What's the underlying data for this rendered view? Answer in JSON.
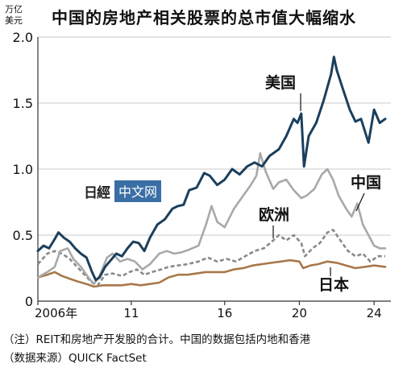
{
  "title": "中国的房地产相关股票的总市值大幅缩水",
  "unit_line1": "万亿",
  "unit_line2": "美元",
  "watermark": {
    "logo": "日經",
    "box": "中文网"
  },
  "notes": [
    "（注）REIT和房地产开发股的合计。中国的数据包括内地和香港",
    "（数据来源）QUICK FactSet"
  ],
  "chart_data": {
    "type": "line",
    "title": "中国的房地产相关股票的总市值大幅缩水",
    "ylabel": "万亿美元",
    "xlabel": "",
    "ylim": [
      0,
      2.0
    ],
    "xlim": [
      2006.0,
      2024.9
    ],
    "y_ticks": [
      0,
      0.5,
      1.0,
      1.5,
      2.0
    ],
    "y_tick_labels": [
      "0",
      "0.5",
      "1.0",
      "1.5",
      "2.0"
    ],
    "x_ticks": [
      2006,
      2011,
      2016,
      2020,
      2024
    ],
    "x_tick_labels": [
      "2006年",
      "11",
      "16",
      "20",
      "24"
    ],
    "grid": "horizontal",
    "series": [
      {
        "name": "美国",
        "color": "#1b3f5c",
        "style": "solid",
        "points": [
          [
            2006.0,
            0.38
          ],
          [
            2006.3,
            0.42
          ],
          [
            2006.6,
            0.4
          ],
          [
            2006.9,
            0.47
          ],
          [
            2007.1,
            0.52
          ],
          [
            2007.4,
            0.48
          ],
          [
            2007.7,
            0.45
          ],
          [
            2008.0,
            0.4
          ],
          [
            2008.3,
            0.36
          ],
          [
            2008.6,
            0.33
          ],
          [
            2008.9,
            0.22
          ],
          [
            2009.1,
            0.16
          ],
          [
            2009.3,
            0.18
          ],
          [
            2009.6,
            0.26
          ],
          [
            2009.9,
            0.31
          ],
          [
            2010.2,
            0.36
          ],
          [
            2010.5,
            0.34
          ],
          [
            2010.8,
            0.4
          ],
          [
            2011.1,
            0.45
          ],
          [
            2011.4,
            0.44
          ],
          [
            2011.7,
            0.38
          ],
          [
            2012.0,
            0.48
          ],
          [
            2012.4,
            0.58
          ],
          [
            2012.8,
            0.62
          ],
          [
            2013.2,
            0.7
          ],
          [
            2013.5,
            0.72
          ],
          [
            2013.8,
            0.73
          ],
          [
            2014.1,
            0.84
          ],
          [
            2014.5,
            0.86
          ],
          [
            2014.9,
            0.97
          ],
          [
            2015.2,
            0.95
          ],
          [
            2015.6,
            0.88
          ],
          [
            2016.0,
            0.92
          ],
          [
            2016.4,
            1.0
          ],
          [
            2016.8,
            0.96
          ],
          [
            2017.2,
            1.02
          ],
          [
            2017.6,
            1.05
          ],
          [
            2018.0,
            1.02
          ],
          [
            2018.4,
            1.1
          ],
          [
            2018.9,
            1.15
          ],
          [
            2019.3,
            1.25
          ],
          [
            2019.7,
            1.38
          ],
          [
            2019.9,
            1.35
          ],
          [
            2020.1,
            1.42
          ],
          [
            2020.25,
            1.02
          ],
          [
            2020.5,
            1.25
          ],
          [
            2020.9,
            1.35
          ],
          [
            2021.3,
            1.52
          ],
          [
            2021.7,
            1.72
          ],
          [
            2021.85,
            1.85
          ],
          [
            2022.0,
            1.75
          ],
          [
            2022.3,
            1.62
          ],
          [
            2022.7,
            1.45
          ],
          [
            2023.0,
            1.36
          ],
          [
            2023.3,
            1.38
          ],
          [
            2023.7,
            1.2
          ],
          [
            2024.0,
            1.45
          ],
          [
            2024.3,
            1.35
          ],
          [
            2024.6,
            1.38
          ]
        ]
      },
      {
        "name": "中国",
        "color": "#a9a9a9",
        "style": "solid",
        "points": [
          [
            2006.0,
            0.18
          ],
          [
            2006.5,
            0.22
          ],
          [
            2006.9,
            0.26
          ],
          [
            2007.2,
            0.38
          ],
          [
            2007.6,
            0.4
          ],
          [
            2007.9,
            0.32
          ],
          [
            2008.3,
            0.26
          ],
          [
            2008.7,
            0.18
          ],
          [
            2009.0,
            0.13
          ],
          [
            2009.3,
            0.19
          ],
          [
            2009.7,
            0.33
          ],
          [
            2010.0,
            0.36
          ],
          [
            2010.4,
            0.3
          ],
          [
            2010.8,
            0.32
          ],
          [
            2011.2,
            0.3
          ],
          [
            2011.6,
            0.24
          ],
          [
            2012.0,
            0.28
          ],
          [
            2012.5,
            0.36
          ],
          [
            2012.9,
            0.38
          ],
          [
            2013.3,
            0.36
          ],
          [
            2013.7,
            0.37
          ],
          [
            2014.1,
            0.39
          ],
          [
            2014.6,
            0.42
          ],
          [
            2015.0,
            0.58
          ],
          [
            2015.3,
            0.72
          ],
          [
            2015.6,
            0.6
          ],
          [
            2016.0,
            0.56
          ],
          [
            2016.5,
            0.7
          ],
          [
            2017.0,
            0.8
          ],
          [
            2017.4,
            0.88
          ],
          [
            2017.7,
            0.95
          ],
          [
            2017.9,
            1.12
          ],
          [
            2018.2,
            0.98
          ],
          [
            2018.6,
            0.85
          ],
          [
            2018.9,
            0.9
          ],
          [
            2019.3,
            0.92
          ],
          [
            2019.7,
            0.84
          ],
          [
            2020.1,
            0.78
          ],
          [
            2020.4,
            0.8
          ],
          [
            2020.8,
            0.85
          ],
          [
            2021.2,
            0.96
          ],
          [
            2021.5,
            1.0
          ],
          [
            2021.8,
            0.92
          ],
          [
            2022.1,
            0.8
          ],
          [
            2022.5,
            0.7
          ],
          [
            2022.8,
            0.64
          ],
          [
            2023.1,
            0.74
          ],
          [
            2023.4,
            0.58
          ],
          [
            2023.7,
            0.5
          ],
          [
            2024.0,
            0.42
          ],
          [
            2024.3,
            0.4
          ],
          [
            2024.6,
            0.4
          ]
        ]
      },
      {
        "name": "欧洲",
        "color": "#8a8a8a",
        "style": "dashed",
        "points": [
          [
            2006.0,
            0.28
          ],
          [
            2006.5,
            0.36
          ],
          [
            2006.9,
            0.38
          ],
          [
            2007.3,
            0.36
          ],
          [
            2007.7,
            0.32
          ],
          [
            2008.1,
            0.26
          ],
          [
            2008.5,
            0.2
          ],
          [
            2008.9,
            0.14
          ],
          [
            2009.2,
            0.12
          ],
          [
            2009.6,
            0.2
          ],
          [
            2010.0,
            0.21
          ],
          [
            2010.5,
            0.19
          ],
          [
            2010.9,
            0.22
          ],
          [
            2011.3,
            0.24
          ],
          [
            2011.7,
            0.2
          ],
          [
            2012.1,
            0.22
          ],
          [
            2012.6,
            0.24
          ],
          [
            2013.0,
            0.26
          ],
          [
            2013.5,
            0.27
          ],
          [
            2014.0,
            0.28
          ],
          [
            2014.6,
            0.3
          ],
          [
            2015.1,
            0.33
          ],
          [
            2015.6,
            0.3
          ],
          [
            2016.1,
            0.32
          ],
          [
            2016.6,
            0.3
          ],
          [
            2017.1,
            0.34
          ],
          [
            2017.6,
            0.38
          ],
          [
            2018.1,
            0.4
          ],
          [
            2018.6,
            0.46
          ],
          [
            2018.9,
            0.5
          ],
          [
            2019.3,
            0.46
          ],
          [
            2019.7,
            0.5
          ],
          [
            2020.1,
            0.44
          ],
          [
            2020.3,
            0.34
          ],
          [
            2020.7,
            0.4
          ],
          [
            2021.1,
            0.44
          ],
          [
            2021.5,
            0.52
          ],
          [
            2021.8,
            0.54
          ],
          [
            2022.2,
            0.46
          ],
          [
            2022.6,
            0.38
          ],
          [
            2023.0,
            0.34
          ],
          [
            2023.4,
            0.36
          ],
          [
            2023.8,
            0.3
          ],
          [
            2024.2,
            0.34
          ],
          [
            2024.6,
            0.34
          ]
        ]
      },
      {
        "name": "日本",
        "color": "#a8784a",
        "style": "solid",
        "points": [
          [
            2006.0,
            0.18
          ],
          [
            2006.5,
            0.2
          ],
          [
            2006.9,
            0.22
          ],
          [
            2007.3,
            0.19
          ],
          [
            2007.7,
            0.17
          ],
          [
            2008.1,
            0.15
          ],
          [
            2008.6,
            0.13
          ],
          [
            2009.0,
            0.11
          ],
          [
            2009.5,
            0.12
          ],
          [
            2010.0,
            0.12
          ],
          [
            2010.5,
            0.12
          ],
          [
            2011.0,
            0.13
          ],
          [
            2011.5,
            0.12
          ],
          [
            2012.0,
            0.13
          ],
          [
            2012.5,
            0.14
          ],
          [
            2013.0,
            0.18
          ],
          [
            2013.5,
            0.2
          ],
          [
            2014.0,
            0.2
          ],
          [
            2014.5,
            0.21
          ],
          [
            2015.0,
            0.22
          ],
          [
            2015.5,
            0.22
          ],
          [
            2016.0,
            0.22
          ],
          [
            2016.5,
            0.24
          ],
          [
            2017.0,
            0.25
          ],
          [
            2017.5,
            0.27
          ],
          [
            2018.0,
            0.28
          ],
          [
            2018.5,
            0.29
          ],
          [
            2019.0,
            0.3
          ],
          [
            2019.5,
            0.31
          ],
          [
            2020.0,
            0.3
          ],
          [
            2020.2,
            0.25
          ],
          [
            2020.6,
            0.27
          ],
          [
            2021.0,
            0.28
          ],
          [
            2021.5,
            0.3
          ],
          [
            2022.0,
            0.29
          ],
          [
            2022.5,
            0.27
          ],
          [
            2023.0,
            0.25
          ],
          [
            2023.5,
            0.26
          ],
          [
            2024.0,
            0.27
          ],
          [
            2024.6,
            0.26
          ]
        ]
      }
    ],
    "annotations": [
      {
        "text": "美国",
        "series": "美国"
      },
      {
        "text": "中国",
        "series": "中国"
      },
      {
        "text": "欧洲",
        "series": "欧洲"
      },
      {
        "text": "日本",
        "series": "日本"
      }
    ]
  }
}
